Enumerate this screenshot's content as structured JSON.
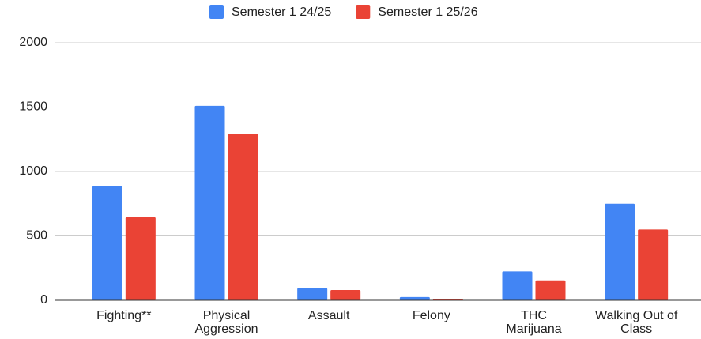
{
  "chart_data": {
    "type": "bar",
    "categories": [
      "Fighting**",
      "Physical\nAggression",
      "Assault",
      "Felony",
      "THC\nMarijuana",
      "Walking Out of\nClass"
    ],
    "series": [
      {
        "name": "Semester 1 24/25",
        "color": "#4285f4",
        "values": [
          885,
          1510,
          95,
          25,
          225,
          750
        ]
      },
      {
        "name": "Semester 1 25/26",
        "color": "#ea4335",
        "values": [
          645,
          1290,
          80,
          10,
          155,
          550
        ]
      }
    ],
    "ylim": [
      0,
      2000
    ],
    "yticks": [
      0,
      500,
      1000,
      1500,
      2000
    ],
    "grid": true,
    "legend": "top"
  }
}
